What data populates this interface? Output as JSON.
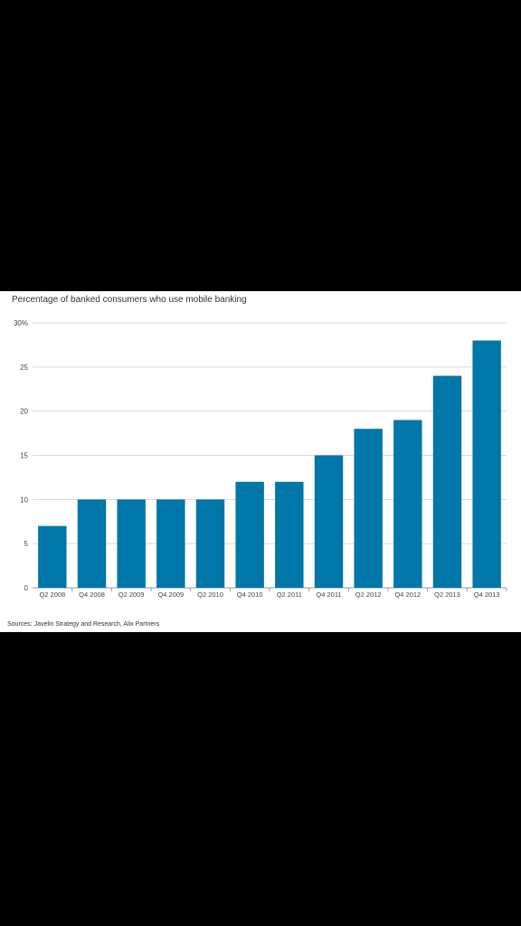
{
  "chart_data": {
    "type": "bar",
    "title": "Percentage of banked consumers who use mobile banking",
    "xlabel": "",
    "ylabel": "",
    "categories": [
      "Q2 2008",
      "Q4 2008",
      "Q2 2009",
      "Q4 2009",
      "Q2 2010",
      "Q4 2010",
      "Q2 2011",
      "Q4 2011",
      "Q2 2012",
      "Q4 2012",
      "Q2 2013",
      "Q4 2013"
    ],
    "values": [
      7,
      10,
      10,
      10,
      10,
      12,
      12,
      15,
      18,
      19,
      24,
      28
    ],
    "ylim": [
      0,
      30
    ],
    "yticks": [
      0,
      5,
      10,
      15,
      20,
      25,
      30
    ],
    "ytick_labels": [
      "0",
      "5",
      "10",
      "15",
      "20",
      "25",
      "30%"
    ],
    "grid": true,
    "bar_color": "#0077a8",
    "source": "Sources: Javelin Strategy and Research, Alix Partners"
  }
}
